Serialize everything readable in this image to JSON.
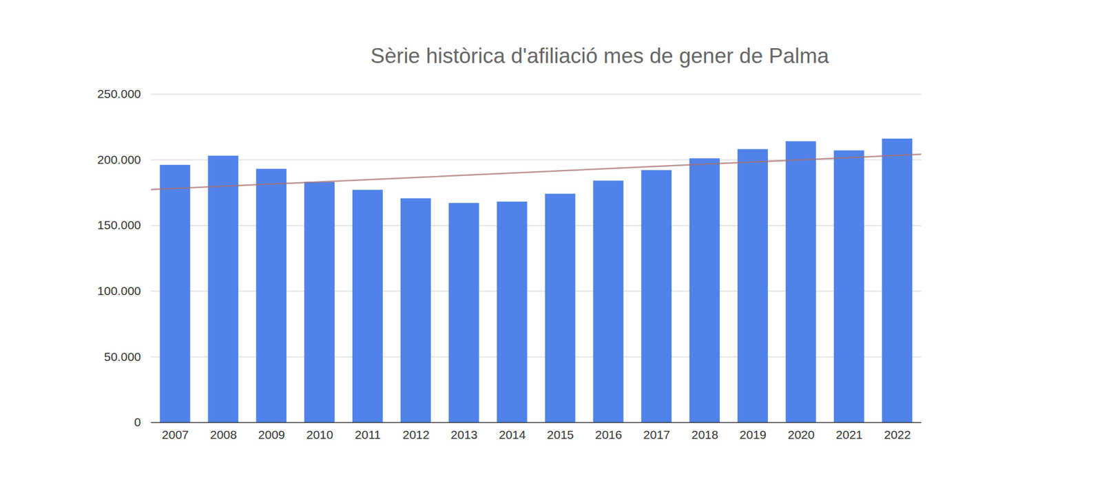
{
  "chart_data": {
    "type": "bar",
    "title": "Sèrie històrica d'afiliació mes de gener de Palma",
    "categories": [
      "2007",
      "2008",
      "2009",
      "2010",
      "2011",
      "2012",
      "2013",
      "2014",
      "2015",
      "2016",
      "2017",
      "2018",
      "2019",
      "2020",
      "2021",
      "2022"
    ],
    "values": [
      196000,
      203000,
      193000,
      183000,
      177000,
      170500,
      167000,
      168000,
      174000,
      184000,
      192000,
      201000,
      208000,
      214000,
      207000,
      216000
    ],
    "color": "#5082ea",
    "ylim": [
      0,
      250000
    ],
    "yticks": [
      0,
      {
        "value": 50000,
        "label": "50.000"
      },
      {
        "value": 100000,
        "label": "100.000"
      },
      {
        "value": 150000,
        "label": "150.000"
      },
      {
        "value": 200000,
        "label": "200.000"
      },
      {
        "value": 250000,
        "label": "250.000"
      }
    ],
    "grid": true
  }
}
